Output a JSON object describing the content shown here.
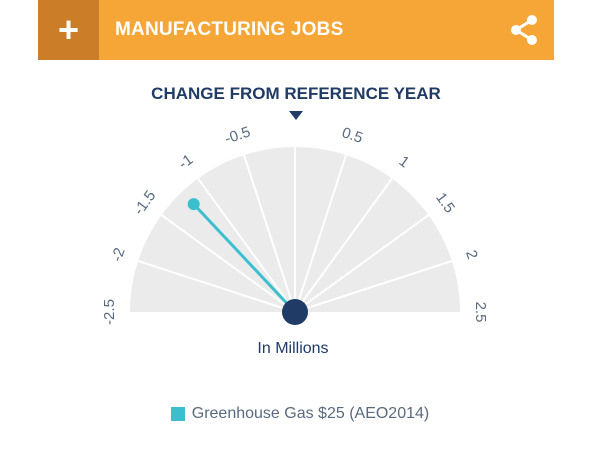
{
  "header": {
    "title": "MANUFACTURING JOBS",
    "add_icon": "plus-icon",
    "share_icon": "share-icon",
    "colors": {
      "bar": "#f6a637",
      "add_button": "#cb7d28"
    }
  },
  "chart_data": {
    "type": "gauge",
    "title": "CHANGE FROM REFERENCE YEAR",
    "unit_label": "In Millions",
    "min": -2.5,
    "max": 2.5,
    "ticks": [
      -2.5,
      -2,
      -1.5,
      -1,
      -0.5,
      0,
      0.5,
      1,
      1.5,
      2,
      2.5
    ],
    "tick_labels": [
      "-2.5",
      "-2",
      "-1.5",
      "-1",
      "-0.5",
      "",
      "0.5",
      "1",
      "1.5",
      "2",
      "2.5"
    ],
    "series": [
      {
        "name": "Greenhouse Gas $25 (AEO2014)",
        "value": -1.2,
        "color": "#3bbfcf"
      }
    ],
    "colors": {
      "face": "#ebebeb",
      "hub": "#1f3b66",
      "label": "#5a6a7e",
      "title": "#1f3b66"
    }
  }
}
